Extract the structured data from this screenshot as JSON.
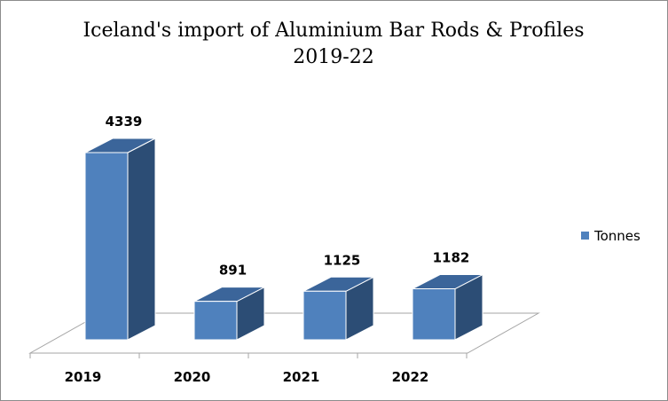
{
  "chart_data": {
    "type": "bar",
    "title": "Iceland's import of Aluminium Bar Rods & Profiles",
    "subtitle": "2019-22",
    "categories": [
      "2019",
      "2020",
      "2021",
      "2022"
    ],
    "series": [
      {
        "name": "Tonnes",
        "values": [
          4339,
          891,
          1125,
          1182
        ]
      }
    ],
    "xlabel": "",
    "ylabel": "",
    "ylim": [
      0,
      4500
    ],
    "grid": false,
    "legend": "right",
    "style": "3d-column",
    "colors": {
      "front": "#4f81bd",
      "side": "#2c4d75",
      "top": "#3b659a"
    }
  }
}
